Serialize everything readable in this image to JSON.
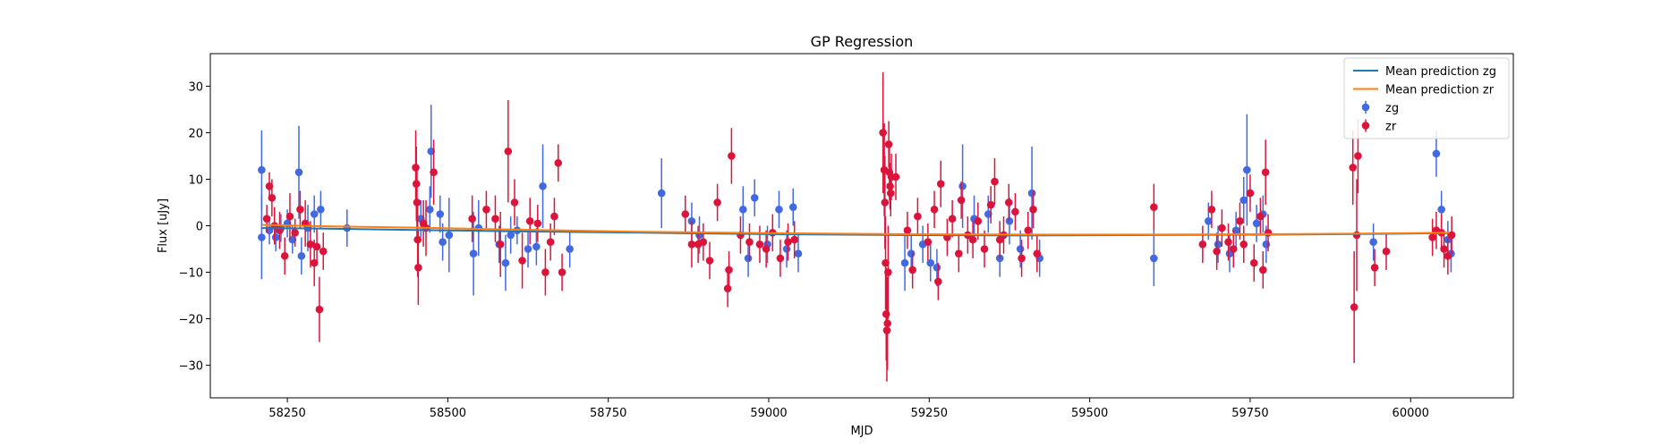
{
  "chart_data": {
    "type": "scatter",
    "title": "GP Regression",
    "xlabel": "MJD",
    "ylabel": "Flux [uJy]",
    "xlim": [
      58130,
      60160
    ],
    "ylim": [
      -37,
      37
    ],
    "xticks": [
      58250,
      58500,
      58750,
      59000,
      59250,
      59500,
      59750,
      60000
    ],
    "yticks": [
      -30,
      -20,
      -10,
      0,
      10,
      20,
      30
    ],
    "grid": false,
    "legend_position": "top-right",
    "colors": {
      "zg": "#4169e1",
      "zr": "#dc143c",
      "mean_zg": "#1f77b4",
      "mean_zr": "#ff7f0e"
    },
    "series": [
      {
        "name": "Mean prediction zg",
        "kind": "line",
        "x": [
          58210,
          58300,
          58450,
          58600,
          58800,
          59000,
          59200,
          59400,
          59600,
          59800,
          60000,
          60060
        ],
        "y": [
          -0.5,
          -0.6,
          -0.9,
          -1.2,
          -1.5,
          -1.8,
          -2.0,
          -2.1,
          -2.0,
          -1.9,
          -1.7,
          -1.6
        ]
      },
      {
        "name": "Mean prediction zr",
        "kind": "line",
        "x": [
          58210,
          58300,
          58450,
          58600,
          58800,
          59000,
          59200,
          59400,
          59600,
          59800,
          60000,
          60060
        ],
        "y": [
          0.2,
          -0.1,
          -0.4,
          -0.8,
          -1.3,
          -1.6,
          -1.8,
          -1.9,
          -1.9,
          -1.8,
          -1.6,
          -1.5
        ]
      },
      {
        "name": "zg",
        "kind": "errorbar",
        "points": [
          [
            58210,
            12,
            8.5
          ],
          [
            58210,
            -2.5,
            9
          ],
          [
            58222,
            -1,
            3
          ],
          [
            58232,
            -2.5,
            3
          ],
          [
            58240,
            -0.5,
            3
          ],
          [
            58250,
            0.5,
            3
          ],
          [
            58258,
            -3,
            3
          ],
          [
            58268,
            11.5,
            10
          ],
          [
            58272,
            -6.5,
            4
          ],
          [
            58282,
            -0.5,
            5
          ],
          [
            58292,
            2.5,
            4
          ],
          [
            58302,
            3.5,
            4
          ],
          [
            58343,
            -0.5,
            4
          ],
          [
            58458,
            1.5,
            4
          ],
          [
            58472,
            3.5,
            5
          ],
          [
            58474,
            16,
            10
          ],
          [
            58488,
            2.5,
            4
          ],
          [
            58492,
            -3.5,
            4
          ],
          [
            58502,
            -2,
            8
          ],
          [
            58540,
            -6,
            9
          ],
          [
            58548,
            -0.5,
            6
          ],
          [
            58580,
            -4,
            4
          ],
          [
            58590,
            -8,
            6
          ],
          [
            58598,
            -2,
            4
          ],
          [
            58608,
            -1,
            3
          ],
          [
            58625,
            -5,
            4
          ],
          [
            58638,
            -4.5,
            4
          ],
          [
            58648,
            8.5,
            9
          ],
          [
            58690,
            -5,
            4
          ],
          [
            58833,
            7,
            7.5
          ],
          [
            58880,
            1,
            4
          ],
          [
            58892,
            -2,
            4
          ],
          [
            58960,
            3.5,
            5
          ],
          [
            58968,
            -7,
            4
          ],
          [
            58978,
            6,
            4
          ],
          [
            58998,
            -4,
            4
          ],
          [
            59016,
            3.5,
            4
          ],
          [
            59028,
            -5,
            4
          ],
          [
            59038,
            4,
            4
          ],
          [
            59046,
            -6,
            4
          ],
          [
            59212,
            -8,
            6
          ],
          [
            59222,
            -6,
            4
          ],
          [
            59240,
            -4,
            4
          ],
          [
            59252,
            -8,
            4
          ],
          [
            59262,
            -9,
            4
          ],
          [
            59302,
            8.5,
            9
          ],
          [
            59320,
            1.5,
            5
          ],
          [
            59342,
            2.5,
            4
          ],
          [
            59360,
            -7,
            4
          ],
          [
            59375,
            1,
            5
          ],
          [
            59392,
            -5,
            4
          ],
          [
            59410,
            7,
            10
          ],
          [
            59422,
            -7,
            4
          ],
          [
            59600,
            -7,
            6
          ],
          [
            59685,
            1,
            4
          ],
          [
            59700,
            -4,
            4
          ],
          [
            59718,
            -6,
            4
          ],
          [
            59728,
            -1,
            4
          ],
          [
            59740,
            5.5,
            5
          ],
          [
            59745,
            12,
            12
          ],
          [
            59760,
            0.5,
            4
          ],
          [
            59770,
            2.5,
            4
          ],
          [
            59775,
            -4,
            4
          ],
          [
            59942,
            -3.5,
            4
          ],
          [
            60040,
            15.5,
            5
          ],
          [
            60048,
            3.5,
            4
          ],
          [
            60058,
            -3,
            4
          ],
          [
            60063,
            -6,
            4
          ]
        ]
      },
      {
        "name": "zr",
        "kind": "errorbar",
        "points": [
          [
            58218,
            1.5,
            3
          ],
          [
            58222,
            8.5,
            3
          ],
          [
            58226,
            6,
            4
          ],
          [
            58230,
            0,
            4
          ],
          [
            58238,
            -1,
            4
          ],
          [
            58246,
            -6.5,
            4
          ],
          [
            58254,
            2,
            5
          ],
          [
            58262,
            -1.5,
            3
          ],
          [
            58270,
            3.5,
            4
          ],
          [
            58278,
            0.5,
            5
          ],
          [
            58286,
            -4,
            5
          ],
          [
            58292,
            -8,
            5
          ],
          [
            58296,
            -4.5,
            4
          ],
          [
            58300,
            -18,
            7
          ],
          [
            58306,
            -5.5,
            4
          ],
          [
            58450,
            12.5,
            8
          ],
          [
            58451,
            9,
            8
          ],
          [
            58452,
            5,
            8
          ],
          [
            58453,
            -3,
            8
          ],
          [
            58454,
            -9,
            8
          ],
          [
            58462,
            0.5,
            5
          ],
          [
            58466,
            -0.5,
            6
          ],
          [
            58478,
            11.5,
            7
          ],
          [
            58538,
            1.5,
            5
          ],
          [
            58560,
            3.5,
            4
          ],
          [
            58574,
            1.5,
            5
          ],
          [
            58582,
            -4,
            7
          ],
          [
            58594,
            16,
            11
          ],
          [
            58604,
            5,
            5
          ],
          [
            58616,
            -7.5,
            6
          ],
          [
            58628,
            1,
            5
          ],
          [
            58640,
            0.5,
            4
          ],
          [
            58652,
            -10,
            5
          ],
          [
            58660,
            -3.5,
            4
          ],
          [
            58666,
            2,
            4
          ],
          [
            58672,
            13.5,
            4
          ],
          [
            58678,
            -10,
            4
          ],
          [
            58870,
            2.5,
            4
          ],
          [
            58880,
            -4,
            5
          ],
          [
            58890,
            -4,
            4
          ],
          [
            58898,
            -3.5,
            4
          ],
          [
            58908,
            -7.5,
            4
          ],
          [
            58920,
            5,
            4
          ],
          [
            58936,
            -13.5,
            4
          ],
          [
            58938,
            -9.5,
            4
          ],
          [
            58942,
            15,
            6
          ],
          [
            58956,
            -2,
            4
          ],
          [
            58970,
            -3.5,
            4
          ],
          [
            58986,
            -4,
            4
          ],
          [
            58996,
            -5,
            4
          ],
          [
            59006,
            -1.5,
            4
          ],
          [
            59018,
            -7,
            4
          ],
          [
            59030,
            -3.5,
            4
          ],
          [
            59040,
            -3,
            4
          ],
          [
            59178,
            20,
            13
          ],
          [
            59180,
            12,
            10
          ],
          [
            59181,
            5,
            10
          ],
          [
            59182,
            -8,
            10
          ],
          [
            59183,
            -19,
            10
          ],
          [
            59184,
            -22.5,
            11
          ],
          [
            59185,
            -21,
            10
          ],
          [
            59186,
            -10,
            10
          ],
          [
            59187,
            17.5,
            5
          ],
          [
            59188,
            11.5,
            6
          ],
          [
            59189,
            8.5,
            5
          ],
          [
            59190,
            7,
            5
          ],
          [
            59191,
            10.5,
            5
          ],
          [
            59198,
            10.5,
            5
          ],
          [
            59216,
            -1,
            4
          ],
          [
            59224,
            -9.5,
            4
          ],
          [
            59232,
            2,
            4
          ],
          [
            59248,
            -3.5,
            4
          ],
          [
            59258,
            3.5,
            4
          ],
          [
            59264,
            -12,
            4
          ],
          [
            59268,
            9,
            5
          ],
          [
            59278,
            -2.5,
            4
          ],
          [
            59286,
            1.5,
            4
          ],
          [
            59296,
            -6,
            4
          ],
          [
            59300,
            5.5,
            4
          ],
          [
            59310,
            -2,
            4
          ],
          [
            59318,
            -3,
            4
          ],
          [
            59326,
            1,
            4
          ],
          [
            59336,
            -5,
            4
          ],
          [
            59346,
            4.5,
            4
          ],
          [
            59352,
            9.5,
            5
          ],
          [
            59360,
            -3,
            4
          ],
          [
            59366,
            -2,
            4
          ],
          [
            59374,
            5,
            4
          ],
          [
            59384,
            3,
            4
          ],
          [
            59394,
            -7,
            4
          ],
          [
            59404,
            -1,
            4
          ],
          [
            59412,
            3.5,
            4
          ],
          [
            59418,
            -6,
            4
          ],
          [
            59600,
            4,
            5
          ],
          [
            59676,
            -4,
            4
          ],
          [
            59690,
            3.5,
            4
          ],
          [
            59698,
            -5.5,
            4
          ],
          [
            59706,
            -0.5,
            4
          ],
          [
            59716,
            -3.5,
            4
          ],
          [
            59724,
            -5,
            4
          ],
          [
            59734,
            1,
            4
          ],
          [
            59740,
            -4,
            4
          ],
          [
            59750,
            7,
            4
          ],
          [
            59756,
            -8,
            4
          ],
          [
            59766,
            2,
            4
          ],
          [
            59770,
            -9.5,
            4
          ],
          [
            59774,
            11.5,
            7
          ],
          [
            59778,
            -1.5,
            4
          ],
          [
            59910,
            12.5,
            8
          ],
          [
            59912,
            -17.5,
            12
          ],
          [
            59916,
            -2,
            12
          ],
          [
            59918,
            15,
            8
          ],
          [
            59944,
            -9,
            4
          ],
          [
            59962,
            -5.5,
            4
          ],
          [
            60034,
            -2.5,
            4
          ],
          [
            60040,
            -1,
            4
          ],
          [
            60048,
            -1.5,
            4
          ],
          [
            60052,
            -5,
            4
          ],
          [
            60058,
            -6.5,
            4
          ],
          [
            60064,
            -2,
            4
          ]
        ]
      }
    ]
  }
}
